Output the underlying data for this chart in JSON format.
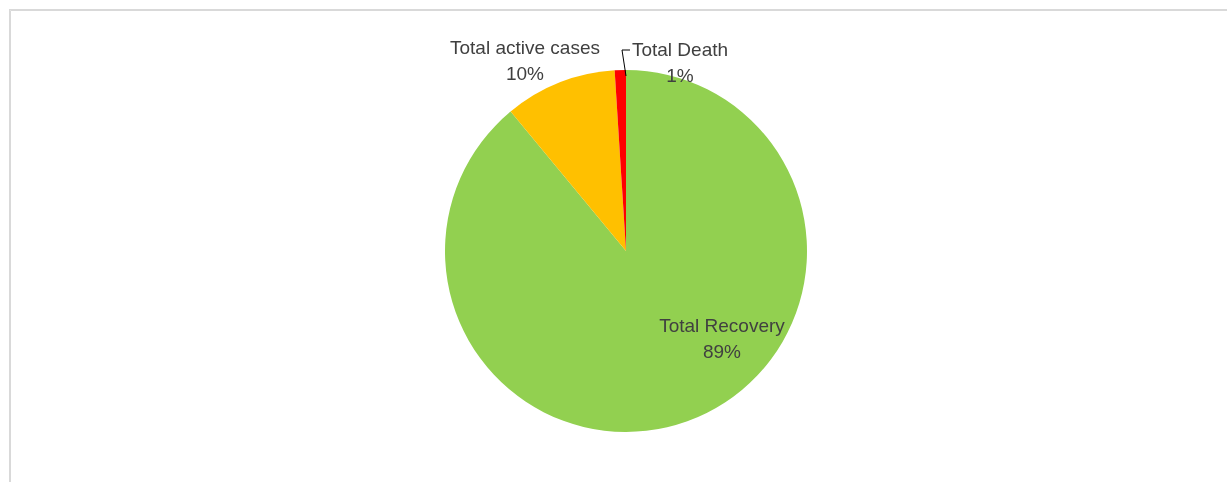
{
  "chart_data": {
    "type": "pie",
    "categories": [
      "Total Recovery",
      "Total active cases",
      "Total Death"
    ],
    "values": [
      89,
      10,
      1
    ],
    "value_labels": [
      "89%",
      "10%",
      "1%"
    ],
    "colors": [
      "#92d050",
      "#ffc000",
      "#ff0000"
    ]
  }
}
